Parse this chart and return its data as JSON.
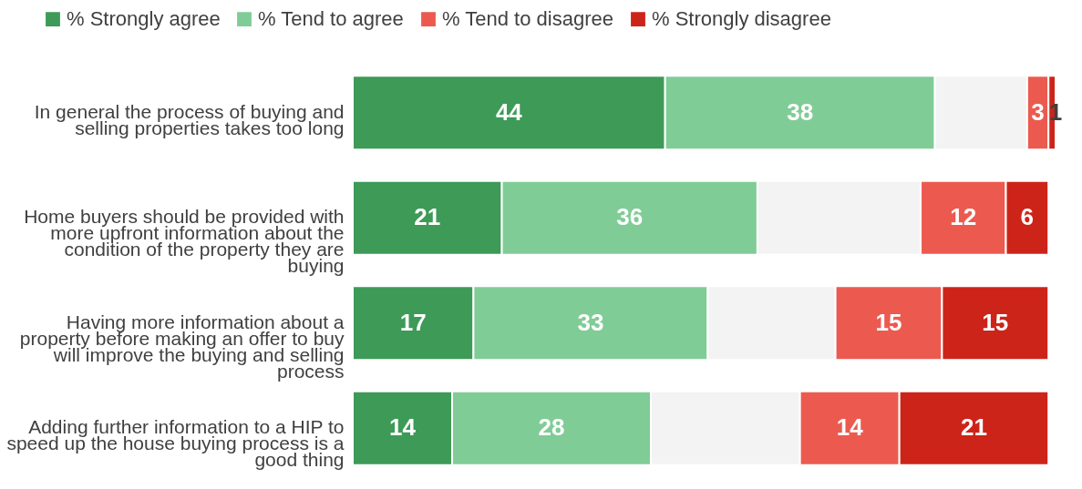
{
  "chart_data": {
    "type": "bar",
    "orientation": "horizontal",
    "stacked": true,
    "legend": "top",
    "data_labels": true,
    "categories": [
      "In general the process of buying and selling properties takes too long",
      "Home buyers should be provided with more upfront information about the condition of the property they are buying",
      "Having more information about a property before making an offer to buy will improve the buying and selling process",
      "Adding further information to a HIP to speed up the house buying process is a good thing"
    ],
    "series": [
      {
        "name": "% Strongly agree",
        "color": "#3d9a57",
        "values": [
          44,
          21,
          17,
          14
        ]
      },
      {
        "name": "% Tend to agree",
        "color": "#80cc96",
        "values": [
          38,
          36,
          33,
          28
        ]
      },
      {
        "color": "#f3f3f3",
        "values": [
          13,
          23,
          18,
          21
        ],
        "value_labels": [
          null,
          null,
          null,
          null
        ]
      },
      {
        "name": "% Tend to disagree",
        "color": "#ec5a4f",
        "values": [
          3,
          12,
          15,
          14
        ]
      },
      {
        "name": "% Strongly disagree",
        "color": "#cc2419",
        "values": [
          1,
          6,
          15,
          21
        ]
      }
    ]
  }
}
